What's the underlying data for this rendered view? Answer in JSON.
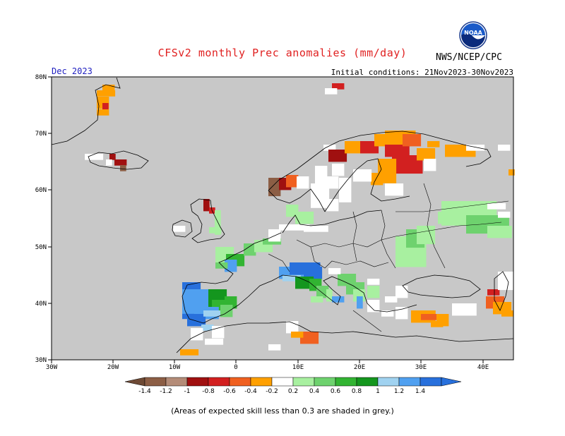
{
  "header": {
    "title": "CFSv2 monthly Prec anomalies (mm/day)",
    "agency": "NWS/NCEP/CPC",
    "logo_text": "NOAA",
    "valid_month": "Dec 2023",
    "initial_conditions": "Initial conditions: 21Nov2023-30Nov2023"
  },
  "axes": {
    "lat_labels": [
      "80N",
      "70N",
      "60N",
      "50N",
      "40N",
      "30N"
    ],
    "lon_labels": [
      "30W",
      "20W",
      "10W",
      "0",
      "10E",
      "20E",
      "30E",
      "40E"
    ]
  },
  "colorbar": {
    "labels": [
      "-1.4",
      "-1.2",
      "-1",
      "-0.8",
      "-0.6",
      "-0.4",
      "-0.2",
      "0.2",
      "0.4",
      "0.6",
      "0.8",
      "1",
      "1.2",
      "1.4"
    ],
    "colors": [
      "#6e4a35",
      "#8c5e45",
      "#b48c78",
      "#a01010",
      "#d22020",
      "#f06020",
      "#ffa000",
      "#ffffff",
      "#a8f0a0",
      "#6ed26e",
      "#32b432",
      "#14961e",
      "#a0d2f0",
      "#50a0f0",
      "#2870dc"
    ],
    "low_end_color": "#6e4a35",
    "high_end_color": "#2870dc"
  },
  "footnote": "(Areas of expected skill less than 0.3 are shaded in grey.)",
  "colors": {
    "no_skill_grey": "#c8c8c8",
    "title_red": "#e02020",
    "month_blue": "#2020c0"
  }
}
